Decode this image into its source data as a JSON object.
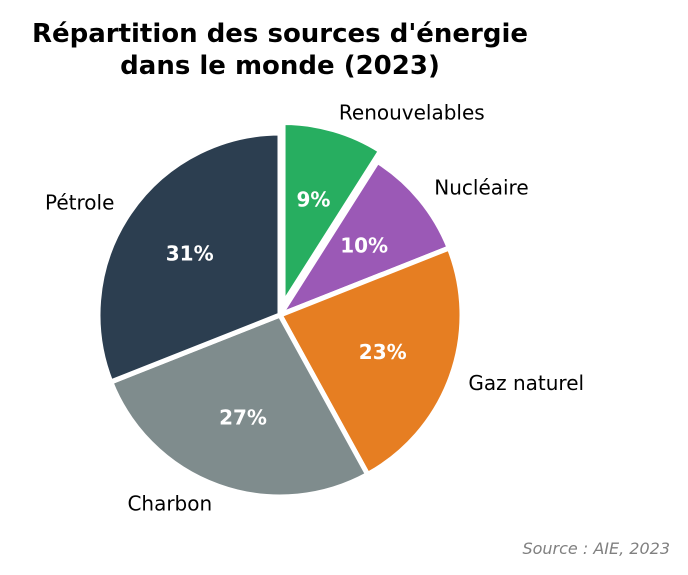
{
  "chart_data": {
    "type": "pie",
    "title_lines": [
      "Répartition des sources d'énergie",
      "dans le monde (2023)"
    ],
    "categories": [
      "Renouvelables",
      "Nucléaire",
      "Gaz naturel",
      "Charbon",
      "Pétrole"
    ],
    "values": [
      9,
      10,
      23,
      27,
      31
    ],
    "labels": [
      "9%",
      "10%",
      "23%",
      "27%",
      "31%"
    ],
    "colors": [
      "#27ae60",
      "#9b59b6",
      "#e67e22",
      "#7f8c8d",
      "#2c3e50"
    ],
    "exploded": [
      true,
      false,
      false,
      false,
      false
    ],
    "start_angle": 90,
    "direction": "clockwise",
    "source": "Source : AIE, 2023"
  }
}
